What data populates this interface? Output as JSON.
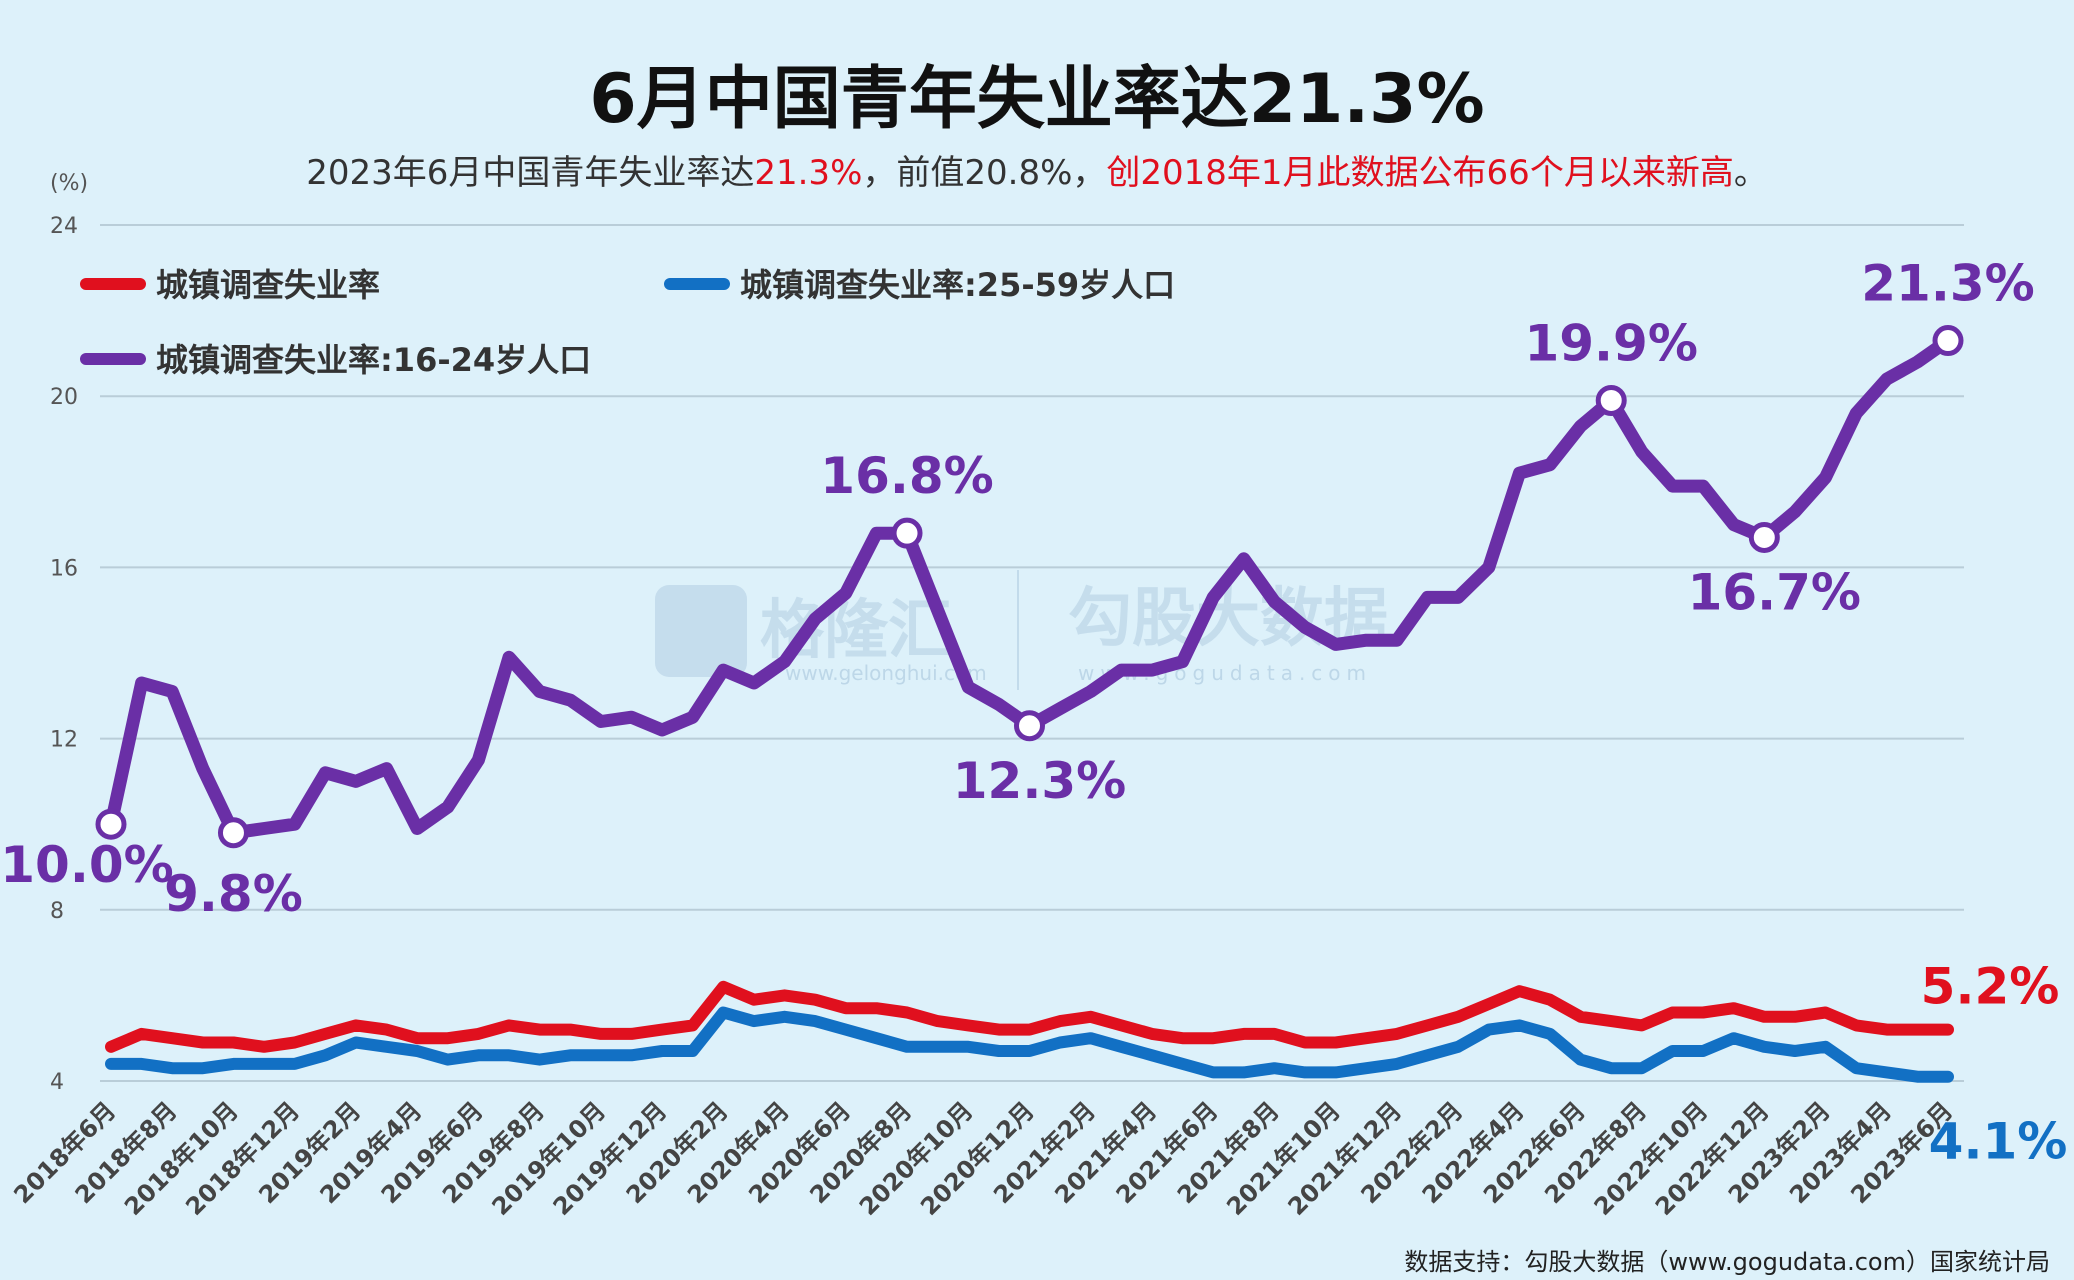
{
  "title": "6月中国青年失业率达21.3%",
  "subtitle": {
    "part1": "2023年6月中国青年失业率达",
    "part2": "21.3%",
    "part3": "，前值20.8%，",
    "part4": "创2018年1月此数据公布66个月以来新高",
    "part5": "。"
  },
  "source": "数据支持：勾股大数据（www.gogudata.com）国家统计局",
  "watermark": {
    "logo1": "格隆汇",
    "logo1_url": "www.gelonghui.com",
    "logo2": "勾股大数据",
    "logo2_url": "www.gogudata.com"
  },
  "chart_data": {
    "type": "line",
    "ylabel": "(%)",
    "ylim": [
      4,
      24
    ],
    "yticks": [
      "4",
      "8",
      "12",
      "16",
      "20",
      "24"
    ],
    "grid": true,
    "legend_placement": "top-left",
    "xtick_labels": [
      "2018年6月",
      "2018年8月",
      "2018年10月",
      "2018年12月",
      "2019年2月",
      "2019年4月",
      "2019年6月",
      "2019年8月",
      "2019年10月",
      "2019年12月",
      "2020年2月",
      "2020年4月",
      "2020年6月",
      "2020年8月",
      "2020年10月",
      "2020年12月",
      "2021年2月",
      "2021年4月",
      "2021年6月",
      "2021年8月",
      "2021年10月",
      "2021年12月",
      "2022年2月",
      "2022年4月",
      "2022年6月",
      "2022年8月",
      "2022年10月",
      "2022年12月",
      "2023年2月",
      "2023年4月",
      "2023年6月"
    ],
    "series": [
      {
        "name": "城镇调查失业率",
        "color": "#e0101e",
        "values": [
          4.8,
          5.1,
          5.0,
          4.9,
          4.9,
          4.8,
          4.9,
          5.1,
          5.3,
          5.2,
          5.0,
          5.0,
          5.1,
          5.3,
          5.2,
          5.2,
          5.1,
          5.1,
          5.2,
          5.3,
          6.2,
          5.9,
          6.0,
          5.9,
          5.7,
          5.7,
          5.6,
          5.4,
          5.3,
          5.2,
          5.2,
          5.4,
          5.5,
          5.3,
          5.1,
          5.0,
          5.0,
          5.1,
          5.1,
          4.9,
          4.9,
          5.0,
          5.1,
          5.3,
          5.5,
          5.8,
          6.1,
          5.9,
          5.5,
          5.4,
          5.3,
          5.6,
          5.6,
          5.7,
          5.5,
          5.5,
          5.6,
          5.3,
          5.2,
          5.2,
          5.2
        ]
      },
      {
        "name": "城镇调查失业率:25-59岁人口",
        "color": "#1270c4",
        "values": [
          4.4,
          4.4,
          4.3,
          4.3,
          4.4,
          4.4,
          4.4,
          4.6,
          4.9,
          4.8,
          4.7,
          4.5,
          4.6,
          4.6,
          4.5,
          4.6,
          4.6,
          4.6,
          4.7,
          4.7,
          5.6,
          5.4,
          5.5,
          5.4,
          5.2,
          5.0,
          4.8,
          4.8,
          4.8,
          4.7,
          4.7,
          4.9,
          5.0,
          4.8,
          4.6,
          4.4,
          4.2,
          4.2,
          4.3,
          4.2,
          4.2,
          4.3,
          4.4,
          4.6,
          4.8,
          5.2,
          5.3,
          5.1,
          4.5,
          4.3,
          4.3,
          4.7,
          4.7,
          5.0,
          4.8,
          4.7,
          4.8,
          4.3,
          4.2,
          4.1,
          4.1
        ]
      },
      {
        "name": "城镇调查失业率:16-24岁人口",
        "color": "#6a2fa6",
        "values": [
          10.0,
          13.3,
          13.1,
          11.3,
          9.8,
          9.9,
          10.0,
          11.2,
          11.0,
          11.3,
          9.9,
          10.4,
          11.5,
          13.9,
          13.1,
          12.9,
          12.4,
          12.5,
          12.2,
          12.5,
          13.6,
          13.3,
          13.8,
          14.8,
          15.4,
          16.8,
          16.8,
          15.0,
          13.2,
          12.8,
          12.3,
          12.7,
          13.1,
          13.6,
          13.6,
          13.8,
          15.3,
          16.2,
          15.2,
          14.6,
          14.2,
          14.3,
          14.3,
          15.3,
          15.3,
          16.0,
          18.2,
          18.4,
          19.3,
          19.9,
          18.7,
          17.9,
          17.9,
          17.0,
          16.7,
          17.3,
          18.1,
          19.6,
          20.4,
          20.8,
          21.3
        ]
      }
    ],
    "annotations": [
      {
        "series": 2,
        "index": 0,
        "label": "10.0%",
        "marker": true
      },
      {
        "series": 2,
        "index": 4,
        "label": "9.8%",
        "marker": true
      },
      {
        "series": 2,
        "index": 26,
        "label": "16.8%",
        "marker": true
      },
      {
        "series": 2,
        "index": 30,
        "label": "12.3%",
        "marker": true
      },
      {
        "series": 2,
        "index": 49,
        "label": "19.9%",
        "marker": true
      },
      {
        "series": 2,
        "index": 54,
        "label": "16.7%",
        "marker": true
      },
      {
        "series": 2,
        "index": 60,
        "label": "21.3%",
        "marker": true
      },
      {
        "series": 0,
        "index": 60,
        "label": "5.2%",
        "marker": false
      },
      {
        "series": 1,
        "index": 60,
        "label": "4.1%",
        "marker": false
      }
    ]
  }
}
